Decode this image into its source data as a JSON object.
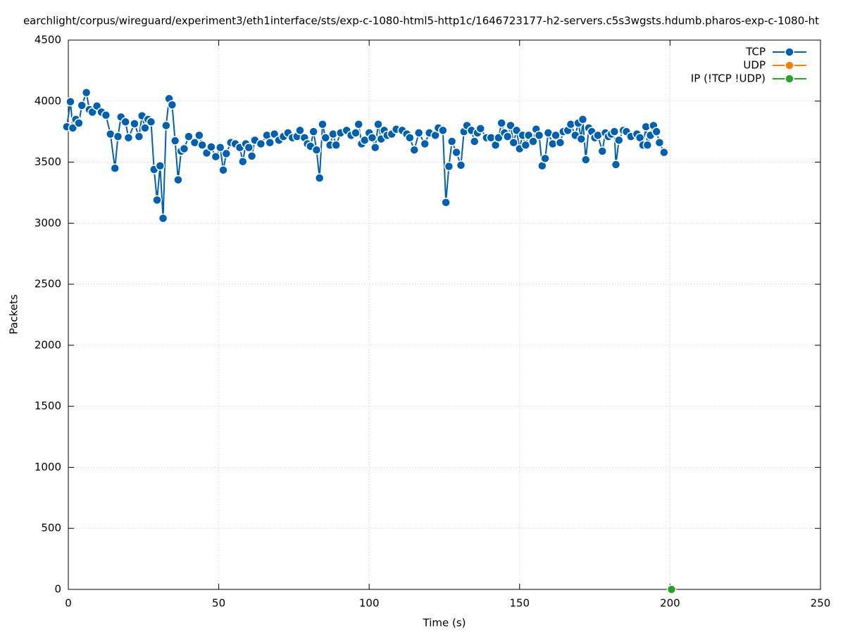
{
  "chart_data": {
    "type": "line",
    "title": "earchlight/corpus/wireguard/experiment3/eth1interface/sts/exp-c-1080-html5-http1c/1646723177-h2-servers.c5s3wgsts.hdumb.pharos-exp-c-1080-ht",
    "xlabel": "Time (s)",
    "ylabel": "Packets",
    "xlim": [
      0,
      250
    ],
    "xticks": [
      0,
      50,
      100,
      150,
      200,
      250
    ],
    "ylim": [
      0,
      4500
    ],
    "yticks": [
      0,
      500,
      1000,
      1500,
      2000,
      2500,
      3000,
      3500,
      4000,
      4500
    ],
    "grid": true,
    "legend": "top-right",
    "series": [
      {
        "name": "TCP",
        "color": "#0060ad",
        "x": [
          -0.5,
          0.7,
          1.5,
          2.5,
          3.5,
          4.5,
          6,
          7,
          8,
          9.5,
          11,
          12.5,
          14,
          15.5,
          16.5,
          17.5,
          19,
          20,
          22,
          23.5,
          24.5,
          25.5,
          26.5,
          27.5,
          28.5,
          29.5,
          30.5,
          31.5,
          32.5,
          33.5,
          34.5,
          35.5,
          36.5,
          37.5,
          38.5,
          40,
          42,
          43.5,
          44.5,
          46,
          47.5,
          49,
          50.5,
          51.5,
          52.5,
          54,
          55.5,
          57,
          58,
          59,
          60,
          61,
          62,
          64,
          66,
          67,
          68.5,
          70,
          71.5,
          73,
          74.5,
          76,
          77,
          78.5,
          79.5,
          80.5,
          81.5,
          82.5,
          83.5,
          84.5,
          85.5,
          87,
          88,
          89,
          90.5,
          92.5,
          94,
          95.5,
          96.5,
          97.5,
          98.5,
          100,
          101,
          102,
          103,
          104,
          105,
          106,
          107.5,
          109,
          111,
          112.5,
          113.5,
          115,
          116.5,
          118.5,
          120,
          122,
          123,
          124.5,
          125.5,
          126.5,
          127.5,
          129,
          130.5,
          131.5,
          132.5,
          134,
          135,
          136,
          137,
          139,
          140.5,
          142,
          143,
          144,
          145,
          146,
          147,
          148,
          149,
          150,
          151,
          152,
          153,
          154.5,
          155.5,
          156.5,
          157.5,
          158.5,
          159.5,
          161,
          162,
          163.5,
          164.5,
          166,
          167,
          168.5,
          169.5,
          170.5,
          171,
          172,
          173,
          174,
          175,
          176,
          177.5,
          178.5,
          179.5,
          180.5,
          181.5,
          182,
          183,
          184.5,
          185.5,
          187,
          189,
          190,
          191,
          192,
          192.5,
          193.5,
          194.5,
          195.5,
          196.5,
          198
        ],
        "values": [
          3790,
          3995,
          3780,
          3850,
          3820,
          3965,
          4070,
          3930,
          3910,
          3960,
          3910,
          3885,
          3730,
          3450,
          3710,
          3870,
          3830,
          3700,
          3815,
          3710,
          3880,
          3780,
          3850,
          3830,
          3440,
          3190,
          3470,
          3040,
          3800,
          4020,
          3970,
          3675,
          3355,
          3590,
          3610,
          3710,
          3660,
          3720,
          3640,
          3575,
          3625,
          3545,
          3620,
          3435,
          3570,
          3660,
          3650,
          3620,
          3505,
          3650,
          3620,
          3550,
          3680,
          3650,
          3720,
          3660,
          3730,
          3680,
          3710,
          3740,
          3700,
          3710,
          3760,
          3700,
          3650,
          3630,
          3750,
          3600,
          3370,
          3810,
          3700,
          3640,
          3730,
          3640,
          3740,
          3760,
          3720,
          3740,
          3810,
          3650,
          3680,
          3740,
          3700,
          3620,
          3810,
          3690,
          3760,
          3720,
          3730,
          3770,
          3760,
          3730,
          3700,
          3600,
          3740,
          3650,
          3740,
          3720,
          3780,
          3760,
          3170,
          3465,
          3670,
          3580,
          3475,
          3750,
          3800,
          3760,
          3670,
          3740,
          3775,
          3700,
          3700,
          3640,
          3700,
          3820,
          3740,
          3710,
          3800,
          3660,
          3760,
          3610,
          3720,
          3640,
          3720,
          3670,
          3770,
          3720,
          3470,
          3530,
          3740,
          3650,
          3720,
          3660,
          3750,
          3760,
          3810,
          3720,
          3820,
          3690,
          3850,
          3520,
          3780,
          3750,
          3700,
          3720,
          3590,
          3740,
          3710,
          3730,
          3750,
          3480,
          3680,
          3760,
          3750,
          3710,
          3730,
          3700,
          3640,
          3790,
          3640,
          3720,
          3800,
          3750,
          3660,
          3580
        ]
      },
      {
        "name": "UDP",
        "color": "#ff7f0e",
        "x": [],
        "values": []
      },
      {
        "name": "IP (!TCP  !UDP)",
        "color": "#2ca02c",
        "x": [
          200.5
        ],
        "values": [
          0
        ]
      }
    ]
  }
}
